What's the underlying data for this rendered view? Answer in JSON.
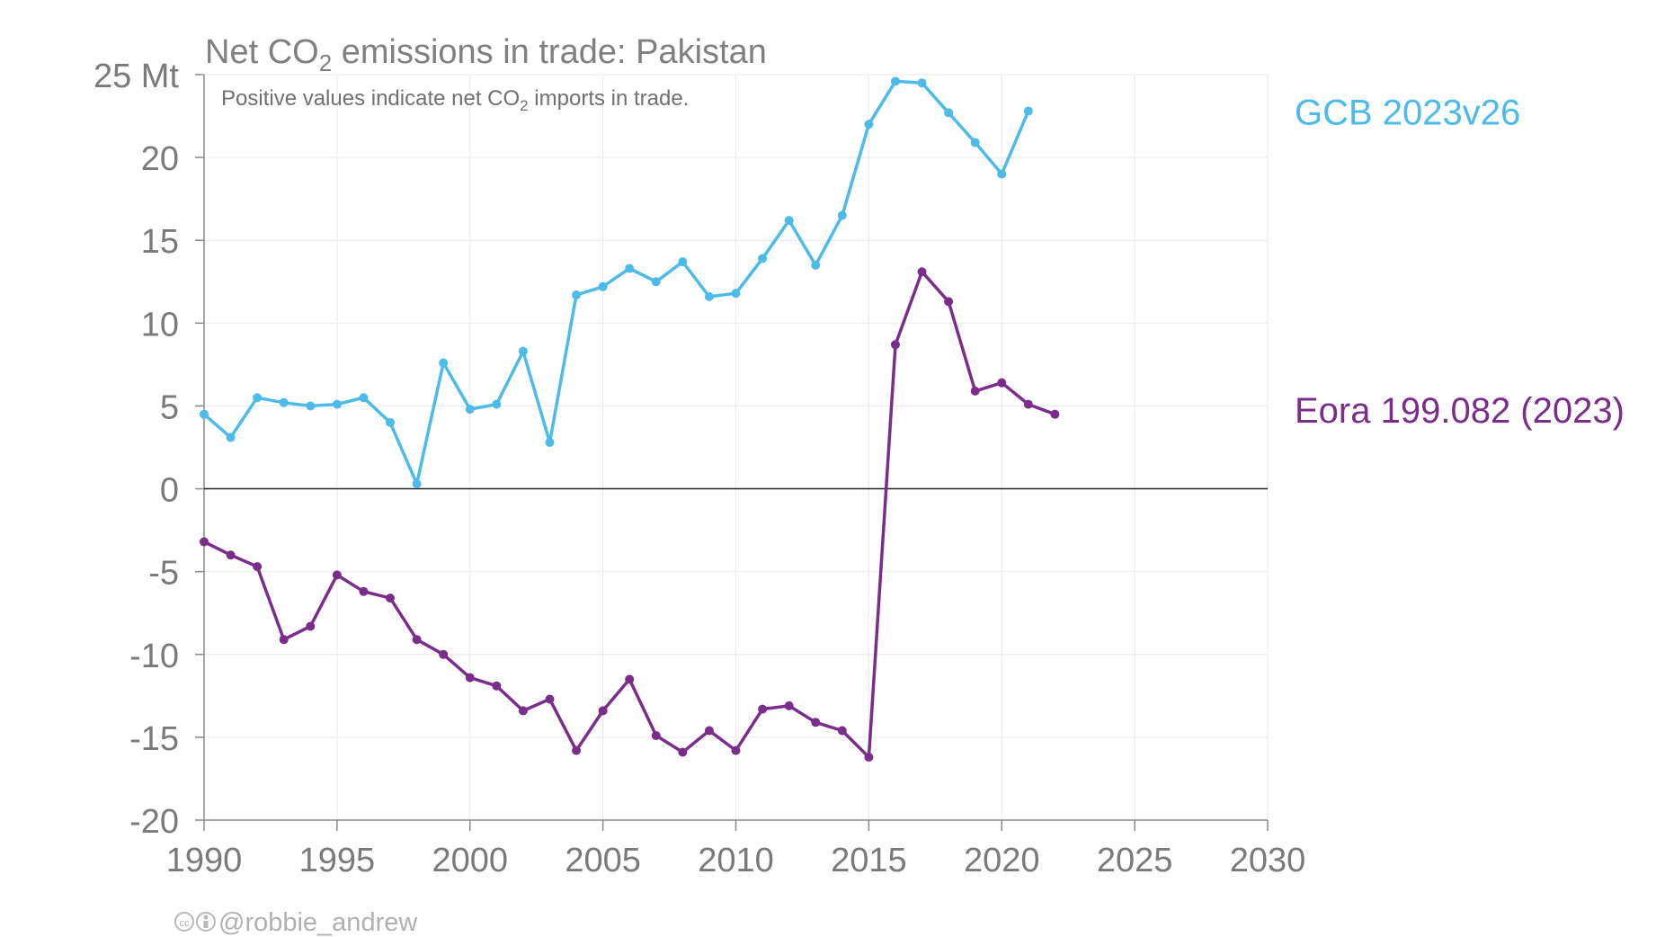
{
  "chart_data": {
    "type": "line",
    "title_prefix": "Net CO",
    "title_sub": "2",
    "title_suffix": " emissions in trade: Pakistan",
    "subtitle_prefix": "Positive values indicate net CO",
    "subtitle_sub": "2",
    "subtitle_suffix": " imports in trade.",
    "y_unit": "Mt",
    "xlim": [
      1990,
      2030
    ],
    "ylim": [
      -20,
      25
    ],
    "x_ticks": [
      {
        "value": 1990,
        "label": "1990"
      },
      {
        "value": 1995,
        "label": "1995"
      },
      {
        "value": 2000,
        "label": "2000"
      },
      {
        "value": 2005,
        "label": "2005"
      },
      {
        "value": 2010,
        "label": "2010"
      },
      {
        "value": 2015,
        "label": "2015"
      },
      {
        "value": 2020,
        "label": "2020"
      },
      {
        "value": 2025,
        "label": "2025"
      },
      {
        "value": 2030,
        "label": "2030"
      }
    ],
    "y_ticks": [
      {
        "value": 25,
        "label": "25 Mt"
      },
      {
        "value": 20,
        "label": "20"
      },
      {
        "value": 15,
        "label": "15"
      },
      {
        "value": 10,
        "label": "10"
      },
      {
        "value": 5,
        "label": "5"
      },
      {
        "value": 0,
        "label": "0"
      },
      {
        "value": -5,
        "label": "-5"
      },
      {
        "value": -10,
        "label": "-10"
      },
      {
        "value": -15,
        "label": "-15"
      },
      {
        "value": -20,
        "label": "-20"
      }
    ],
    "grid": true,
    "legend": "right, labels beside series",
    "series": [
      {
        "name": "GCB 2023v26",
        "color": "#4cbbea",
        "x": [
          1990,
          1991,
          1992,
          1993,
          1994,
          1995,
          1996,
          1997,
          1998,
          1999,
          2000,
          2001,
          2002,
          2003,
          2004,
          2005,
          2006,
          2007,
          2008,
          2009,
          2010,
          2011,
          2012,
          2013,
          2014,
          2015,
          2016,
          2017,
          2018,
          2019,
          2020,
          2021
        ],
        "y": [
          4.5,
          3.1,
          5.5,
          5.2,
          5.0,
          5.1,
          5.5,
          4.0,
          0.3,
          7.6,
          4.8,
          5.1,
          8.3,
          2.8,
          11.7,
          12.2,
          13.3,
          12.5,
          13.7,
          11.6,
          11.8,
          13.9,
          16.2,
          13.5,
          16.5,
          22.0,
          24.6,
          24.5,
          22.7,
          20.9,
          19.0,
          22.8
        ]
      },
      {
        "name": "Eora 199.082 (2023)",
        "color": "#7b2d8b",
        "x": [
          1990,
          1991,
          1992,
          1993,
          1994,
          1995,
          1996,
          1997,
          1998,
          1999,
          2000,
          2001,
          2002,
          2003,
          2004,
          2005,
          2006,
          2007,
          2008,
          2009,
          2010,
          2011,
          2012,
          2013,
          2014,
          2015,
          2016,
          2017,
          2018,
          2019,
          2020,
          2021,
          2022
        ],
        "y": [
          -3.2,
          -4.0,
          -4.7,
          -9.1,
          -8.3,
          -5.2,
          -6.2,
          -6.6,
          -9.1,
          -10.0,
          -11.4,
          -11.9,
          -13.4,
          -12.7,
          -15.8,
          -13.4,
          -11.5,
          -14.9,
          -15.9,
          -14.6,
          -15.8,
          -13.3,
          -13.1,
          -14.1,
          -14.6,
          -16.2,
          8.7,
          13.1,
          11.3,
          5.9,
          6.4,
          5.1,
          4.5
        ]
      }
    ],
    "credit": "@robbie_andrew"
  }
}
